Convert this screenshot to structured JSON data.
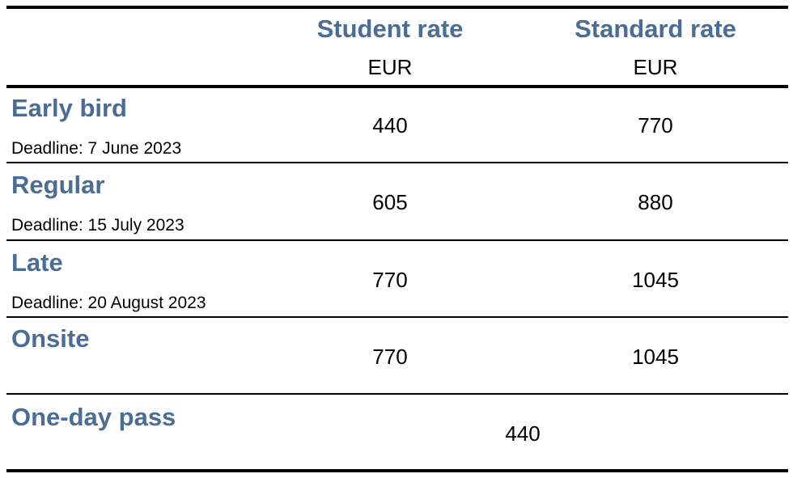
{
  "columns": [
    {
      "header": "Student rate",
      "unit": "EUR"
    },
    {
      "header": "Standard rate",
      "unit": "EUR"
    }
  ],
  "rows": [
    {
      "name": "Early bird",
      "deadline": "Deadline: 7 June 2023",
      "student": "440",
      "standard": "770"
    },
    {
      "name": "Regular",
      "deadline": "Deadline: 15 July 2023",
      "student": "605",
      "standard": "880"
    },
    {
      "name": "Late",
      "deadline": "Deadline: 20 August 2023",
      "student": "770",
      "standard": "1045"
    },
    {
      "name": "Onsite",
      "student": "770",
      "standard": "1045"
    }
  ],
  "one_day_pass": {
    "name": "One-day pass",
    "price": "440"
  },
  "colors": {
    "heading": "#4a6d95",
    "text": "#000000",
    "rules": "#000000"
  }
}
